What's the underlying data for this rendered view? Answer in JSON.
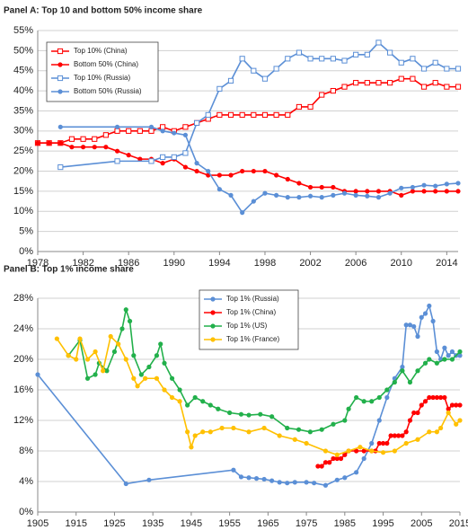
{
  "chart_data": [
    {
      "type": "line",
      "title": "Panel A: Top 10 and bottom 50% income share",
      "grid": true,
      "legend": "upper left",
      "xlim": [
        1978,
        2015
      ],
      "xticks": [
        1978,
        1982,
        1986,
        1990,
        1994,
        1998,
        2002,
        2006,
        2010,
        2014
      ],
      "ylim": [
        0,
        55
      ],
      "yticks": [
        {
          "value": 0,
          "label": "0%"
        },
        {
          "value": 5,
          "label": "5%"
        },
        {
          "value": 10,
          "label": "10%"
        },
        {
          "value": 15,
          "label": "15%"
        },
        {
          "value": 20,
          "label": "20%"
        },
        {
          "value": 25,
          "label": "25%"
        },
        {
          "value": 30,
          "label": "30%"
        },
        {
          "value": 35,
          "label": "35%"
        },
        {
          "value": 40,
          "label": "40%"
        },
        {
          "value": 45,
          "label": "45%"
        },
        {
          "value": 50,
          "label": "50%"
        },
        {
          "value": 55,
          "label": "55%"
        }
      ],
      "series": [
        {
          "name": "Top 10% (China)",
          "color": "#ff0000",
          "marker": "open-square",
          "x": [
            1978,
            1979,
            1980,
            1981,
            1982,
            1983,
            1984,
            1985,
            1986,
            1987,
            1988,
            1989,
            1990,
            1991,
            1992,
            1993,
            1994,
            1995,
            1996,
            1997,
            1998,
            1999,
            2000,
            2001,
            2002,
            2003,
            2004,
            2005,
            2006,
            2007,
            2008,
            2009,
            2010,
            2011,
            2012,
            2013,
            2014,
            2015
          ],
          "values": [
            27,
            27,
            27,
            28,
            28,
            28,
            29,
            30,
            30,
            30,
            30,
            31,
            30,
            31,
            32,
            33,
            34,
            34,
            34,
            34,
            34,
            34,
            34,
            36,
            36,
            39,
            40,
            41,
            42,
            42,
            42,
            42,
            43,
            43,
            41,
            42,
            41,
            41
          ]
        },
        {
          "name": "Bottom 50% (China)",
          "color": "#ff0000",
          "marker": "circle",
          "x": [
            1978,
            1979,
            1980,
            1981,
            1982,
            1983,
            1984,
            1985,
            1986,
            1987,
            1988,
            1989,
            1990,
            1991,
            1992,
            1993,
            1994,
            1995,
            1996,
            1997,
            1998,
            1999,
            2000,
            2001,
            2002,
            2003,
            2004,
            2005,
            2006,
            2007,
            2008,
            2009,
            2010,
            2011,
            2012,
            2013,
            2014,
            2015
          ],
          "values": [
            27,
            27,
            27,
            26,
            26,
            26,
            26,
            25,
            24,
            23,
            23,
            22,
            23,
            21,
            20,
            19,
            19,
            19,
            20,
            20,
            20,
            19,
            18,
            17,
            16,
            16,
            16,
            15,
            15,
            15,
            15,
            15,
            14,
            15,
            15,
            15,
            15,
            15
          ]
        },
        {
          "name": "Top 10% (Russia)",
          "color": "#5b8fd6",
          "marker": "open-square",
          "x": [
            1980,
            1985,
            1988,
            1989,
            1990,
            1991,
            1992,
            1993,
            1994,
            1995,
            1996,
            1997,
            1998,
            1999,
            2000,
            2001,
            2002,
            2003,
            2004,
            2005,
            2006,
            2007,
            2008,
            2009,
            2010,
            2011,
            2012,
            2013,
            2014,
            2015
          ],
          "values": [
            21,
            22.5,
            22.5,
            23.5,
            23.5,
            24.5,
            32,
            34,
            40.5,
            42.5,
            48,
            45,
            43,
            45.5,
            48,
            49.5,
            48,
            48,
            48,
            47.5,
            49,
            49,
            52,
            49.5,
            47,
            48,
            45.5,
            47,
            45.5,
            45.5
          ]
        },
        {
          "name": "Bottom 50% (Russia)",
          "color": "#5b8fd6",
          "marker": "circle",
          "x": [
            1980,
            1985,
            1988,
            1989,
            1990,
            1991,
            1992,
            1993,
            1994,
            1995,
            1996,
            1997,
            1998,
            1999,
            2000,
            2001,
            2002,
            2003,
            2004,
            2005,
            2006,
            2007,
            2008,
            2009,
            2010,
            2011,
            2012,
            2013,
            2014,
            2015
          ],
          "values": [
            31,
            31,
            31,
            30,
            29.5,
            29,
            22,
            20,
            15.5,
            14,
            9.7,
            12.5,
            14.5,
            14,
            13.5,
            13.5,
            13.8,
            13.5,
            14,
            14.5,
            14,
            13.8,
            13.5,
            14.5,
            15.8,
            16,
            16.5,
            16.3,
            16.8,
            17
          ]
        }
      ]
    },
    {
      "type": "line",
      "title": "Panel B: Top 1% income share",
      "grid": true,
      "legend": "upper center",
      "xlim": [
        1905,
        2015
      ],
      "xticks": [
        1905,
        1915,
        1925,
        1935,
        1945,
        1955,
        1965,
        1975,
        1985,
        1995,
        2005,
        2015
      ],
      "ylim": [
        0,
        28
      ],
      "yticks": [
        {
          "value": 0,
          "label": "0%"
        },
        {
          "value": 4,
          "label": "4%"
        },
        {
          "value": 8,
          "label": "8%"
        },
        {
          "value": 12,
          "label": "12%"
        },
        {
          "value": 16,
          "label": "16%"
        },
        {
          "value": 20,
          "label": "20%"
        },
        {
          "value": 24,
          "label": "24%"
        },
        {
          "value": 28,
          "label": "28%"
        }
      ],
      "series": [
        {
          "name": "Top 1% (Russia)",
          "color": "#5b8fd6",
          "marker": "circle",
          "x": [
            1905,
            1928,
            1934,
            1956,
            1958,
            1960,
            1962,
            1964,
            1966,
            1968,
            1970,
            1972,
            1975,
            1977,
            1980,
            1983,
            1985,
            1988,
            1990,
            1992,
            1994,
            1996,
            1998,
            2000,
            2001,
            2002,
            2003,
            2004,
            2005,
            2006,
            2007,
            2008,
            2009,
            2010,
            2011,
            2012,
            2013,
            2014,
            2015
          ],
          "values": [
            18,
            3.7,
            4.2,
            5.5,
            4.6,
            4.5,
            4.4,
            4.3,
            4.1,
            3.9,
            3.8,
            3.9,
            3.9,
            3.8,
            3.5,
            4.2,
            4.5,
            5.2,
            7,
            9,
            12,
            15,
            17.5,
            19,
            24.5,
            24.5,
            24.3,
            23,
            25.5,
            26,
            27,
            25,
            21,
            20,
            21.5,
            20.5,
            21,
            20.5,
            20.5
          ]
        },
        {
          "name": "Top 1% (China)",
          "color": "#ff0000",
          "marker": "circle",
          "x": [
            1978,
            1979,
            1980,
            1981,
            1982,
            1983,
            1984,
            1985,
            1986,
            1988,
            1990,
            1992,
            1993,
            1994,
            1995,
            1996,
            1997,
            1998,
            1999,
            2000,
            2001,
            2002,
            2003,
            2004,
            2005,
            2006,
            2007,
            2008,
            2009,
            2010,
            2011,
            2012,
            2013,
            2014,
            2015
          ],
          "values": [
            6,
            6,
            6.5,
            6.5,
            7,
            7,
            7,
            7.5,
            8,
            8,
            8,
            8,
            8,
            9,
            9,
            9,
            10,
            10,
            10,
            10,
            10.5,
            12,
            13,
            13,
            14,
            14.5,
            15,
            15,
            15,
            15,
            15,
            13.5,
            14,
            14,
            14
          ]
        },
        {
          "name": "Top 1% (US)",
          "color": "#22b04b",
          "marker": "circle",
          "x": [
            1913,
            1916,
            1918,
            1920,
            1921,
            1923,
            1925,
            1927,
            1928,
            1929,
            1930,
            1932,
            1934,
            1936,
            1937,
            1938,
            1940,
            1942,
            1944,
            1946,
            1948,
            1950,
            1952,
            1955,
            1958,
            1960,
            1963,
            1966,
            1970,
            1973,
            1976,
            1979,
            1982,
            1985,
            1986,
            1988,
            1990,
            1992,
            1994,
            1996,
            1998,
            2000,
            2002,
            2004,
            2006,
            2007,
            2009,
            2011,
            2013,
            2015
          ],
          "values": [
            20.5,
            22.5,
            17.5,
            18,
            19.5,
            18.5,
            21,
            24,
            26.5,
            25,
            20.5,
            18,
            19,
            20.5,
            22,
            19.5,
            17.5,
            16,
            14,
            15,
            14.5,
            14,
            13.5,
            13,
            12.8,
            12.7,
            12.8,
            12.5,
            11,
            10.8,
            10.5,
            10.8,
            11.5,
            12,
            13.5,
            15,
            14.5,
            14.5,
            15,
            16,
            17,
            18.5,
            17,
            18.5,
            19.5,
            20,
            19.5,
            20,
            20,
            21
          ]
        },
        {
          "name": "Top 1% (France)",
          "color": "#ffc000",
          "marker": "circle",
          "x": [
            1910,
            1913,
            1915,
            1916,
            1918,
            1920,
            1922,
            1924,
            1926,
            1928,
            1930,
            1931,
            1933,
            1936,
            1938,
            1940,
            1942,
            1944,
            1945,
            1946,
            1948,
            1950,
            1953,
            1956,
            1960,
            1964,
            1968,
            1972,
            1975,
            1980,
            1983,
            1986,
            1989,
            1992,
            1995,
            1998,
            2001,
            2004,
            2007,
            2009,
            2010,
            2012,
            2014,
            2015
          ],
          "values": [
            22.7,
            20.5,
            20,
            22.7,
            20,
            21,
            18.5,
            23,
            22,
            20,
            17.5,
            16.5,
            17.5,
            17.5,
            16,
            15,
            14.5,
            10.5,
            8.5,
            10,
            10.5,
            10.5,
            11,
            11,
            10.5,
            11,
            10,
            9.5,
            9,
            8,
            7.5,
            8,
            8.5,
            8,
            7.8,
            8,
            9,
            9.5,
            10.5,
            10.5,
            11,
            13,
            11.5,
            12
          ]
        }
      ]
    }
  ]
}
